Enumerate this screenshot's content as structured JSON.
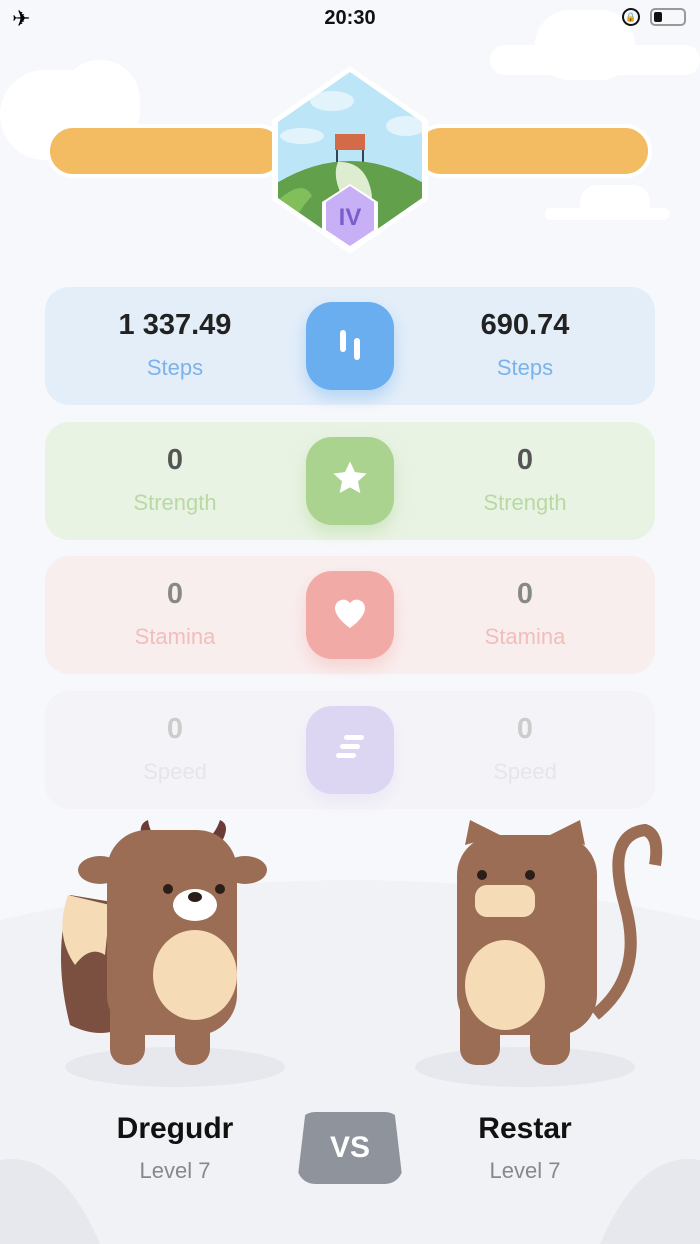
{
  "status_bar": {
    "time": "20:30",
    "airplane_icon": "airplane-icon",
    "lock_icon": "rotation-lock-icon",
    "battery_icon": "battery-low-icon"
  },
  "progress": {
    "color": "#f3bc62",
    "left_fill": 1.0,
    "right_fill": 1.0
  },
  "level_badge": {
    "numeral": "IV"
  },
  "stats": [
    {
      "left": "1 337.49",
      "right": "690.74",
      "label": "Steps",
      "icon": "steps-icon",
      "bg": "#e4eef9",
      "accent": "#6aaef0",
      "valcolor": "#222",
      "lblcolor": "#7ab3ea"
    },
    {
      "left": "0",
      "right": "0",
      "label": "Strength",
      "icon": "star-icon",
      "bg": "#e9f3e4",
      "accent": "#a9d38e",
      "valcolor": "#555",
      "lblcolor": "#b8d9a4"
    },
    {
      "left": "0",
      "right": "0",
      "label": "Stamina",
      "icon": "heart-icon",
      "bg": "#f9eeee",
      "accent": "#f1aaa6",
      "valcolor": "#888",
      "lblcolor": "#f2bdba"
    },
    {
      "left": "0",
      "right": "0",
      "label": "Speed",
      "icon": "speed-icon",
      "bg": "#f4f4f8",
      "accent": "#dcd6f3",
      "valcolor": "#ccc",
      "lblcolor": "#e6e6ea"
    }
  ],
  "players": {
    "left": {
      "name": "Dregudr",
      "level": "Level 7"
    },
    "right": {
      "name": "Restar",
      "level": "Level 7"
    }
  },
  "vs_label": "VS"
}
